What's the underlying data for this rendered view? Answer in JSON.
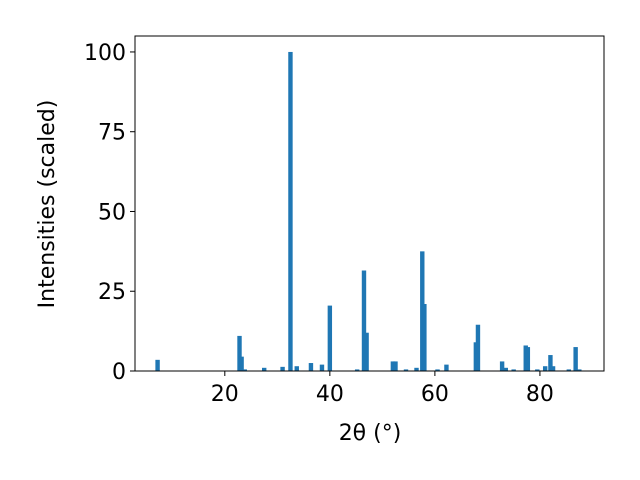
{
  "chart_data": {
    "type": "bar",
    "xlabel": "2θ (°)",
    "ylabel": "Intensities (scaled)",
    "color": "#1f77b4",
    "x": [
      7.2,
      22.8,
      23.2,
      23.8,
      27.5,
      31,
      32.5,
      33.7,
      36.4,
      38.5,
      40,
      45.2,
      46.5,
      47,
      52,
      52.5,
      54.5,
      56.5,
      57.6,
      58,
      60.5,
      62.2,
      67.8,
      68.2,
      72.8,
      73.5,
      75,
      77.3,
      77.7,
      79.5,
      81,
      82,
      82.5,
      85.5,
      86.8,
      87.5
    ],
    "values": [
      3.5,
      11,
      4.5,
      0.5,
      1,
      1.3,
      100,
      1.5,
      2.5,
      2,
      20.5,
      0.5,
      31.5,
      12,
      3,
      3,
      0.5,
      1,
      37.5,
      21,
      0.5,
      2,
      9,
      14.5,
      3,
      1,
      0.5,
      8,
      7.5,
      0.5,
      1.5,
      5,
      1.5,
      0.5,
      7.5,
      0.5
    ],
    "xlim": [
      2.9,
      92.2
    ],
    "xticks": [
      20,
      40,
      60,
      80
    ],
    "ylim": [
      0,
      105
    ],
    "yticks": [
      0,
      25,
      50,
      75,
      100
    ]
  }
}
